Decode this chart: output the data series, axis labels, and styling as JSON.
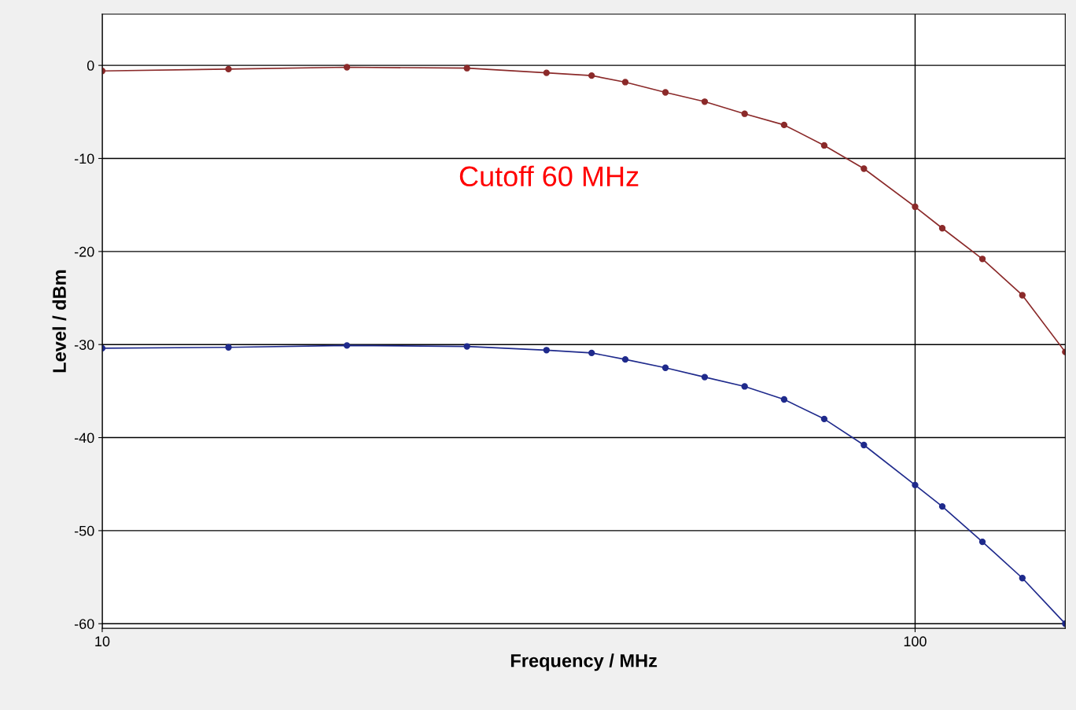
{
  "chart_data": {
    "type": "line",
    "xlabel": "Frequency / MHz",
    "ylabel": "Level / dBm",
    "log": "x",
    "grid": true,
    "legend": false,
    "marker": "circle",
    "line_style": "solid",
    "x": [
      10,
      14.3,
      20,
      28.1,
      35.2,
      40,
      44,
      49.3,
      55.1,
      61.7,
      69,
      77.3,
      86.5,
      100,
      108,
      121,
      135.5,
      153
    ],
    "series": [
      {
        "color": "#8b2a2a",
        "values": [
          -0.6,
          -0.4,
          -0.2,
          -0.3,
          -0.8,
          -1.1,
          -1.8,
          -2.9,
          -3.9,
          -5.2,
          -6.4,
          -8.6,
          -11.1,
          -15.2,
          -17.5,
          -20.8,
          -24.7,
          -30.8
        ]
      },
      {
        "color": "#1f2a8c",
        "values": [
          -30.4,
          -30.3,
          -30.1,
          -30.2,
          -30.6,
          -30.9,
          -31.6,
          -32.5,
          -33.5,
          -34.5,
          -35.9,
          -38.0,
          -40.8,
          -45.1,
          -47.4,
          -51.2,
          -55.1,
          -60.0
        ]
      }
    ],
    "xlim": [
      10,
      153
    ],
    "xticks": [
      10,
      100
    ],
    "ylim": [
      -60.5,
      5.5
    ],
    "yticks": [
      0,
      -10,
      -20,
      -30,
      -40,
      -50,
      -60
    ],
    "annotations": [
      "Cutoff 60 MHz"
    ]
  }
}
